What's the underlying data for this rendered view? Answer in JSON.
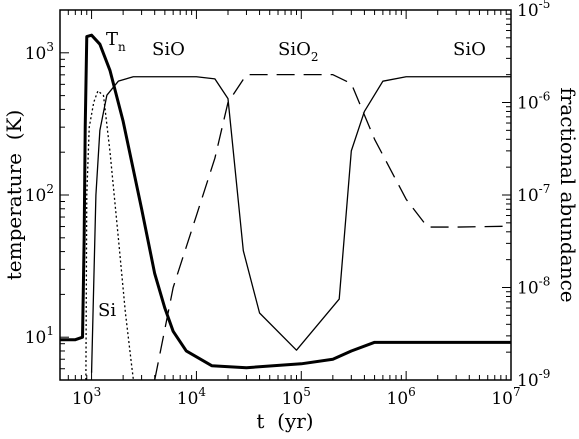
{
  "chart_data": {
    "type": "line",
    "xlabel": "t  (yr)",
    "ylabel_left": "temperature  (K)",
    "ylabel_right": "fractional abundance",
    "x_scale": "log",
    "xlim": [
      500,
      10000000
    ],
    "ylim_left": [
      5,
      2000
    ],
    "ylim_right": [
      1e-09,
      1e-05
    ],
    "x_ticks": [
      {
        "value": 1000,
        "base": "10",
        "exp": "3"
      },
      {
        "value": 10000,
        "base": "10",
        "exp": "4"
      },
      {
        "value": 100000,
        "base": "10",
        "exp": "5"
      },
      {
        "value": 1000000,
        "base": "10",
        "exp": "6"
      },
      {
        "value": 10000000,
        "base": "10",
        "exp": "7"
      }
    ],
    "y_left_ticks": [
      {
        "value": 10,
        "base": "10",
        "exp": "1"
      },
      {
        "value": 100,
        "base": "10",
        "exp": "2"
      },
      {
        "value": 1000,
        "base": "10",
        "exp": "3"
      }
    ],
    "y_right_ticks": [
      {
        "value": 1e-09,
        "base": "10",
        "exp": "-9"
      },
      {
        "value": 1e-08,
        "base": "10",
        "exp": "-8"
      },
      {
        "value": 1e-07,
        "base": "10",
        "exp": "-7"
      },
      {
        "value": 1e-06,
        "base": "10",
        "exp": "-6"
      },
      {
        "value": 1e-05,
        "base": "10",
        "exp": "-5"
      }
    ],
    "series": [
      {
        "name": "T",
        "name_sub": "n",
        "axis": "left",
        "style": "thick",
        "points": [
          [
            500,
            9.6
          ],
          [
            700,
            9.6
          ],
          [
            820,
            10
          ],
          [
            850,
            50
          ],
          [
            870,
            300
          ],
          [
            900,
            1300
          ],
          [
            1000,
            1330
          ],
          [
            1200,
            1150
          ],
          [
            1500,
            750
          ],
          [
            2000,
            330
          ],
          [
            3000,
            80
          ],
          [
            4000,
            28
          ],
          [
            5000,
            16
          ],
          [
            6000,
            11
          ],
          [
            8000,
            8
          ],
          [
            14000,
            6.3
          ],
          [
            30000,
            6.1
          ],
          [
            100000,
            6.5
          ],
          [
            200000,
            7
          ],
          [
            300000,
            8
          ],
          [
            500000,
            9.2
          ],
          [
            10000000,
            9.2
          ]
        ]
      },
      {
        "name": "Si",
        "axis": "left",
        "style": "dotted",
        "points": [
          [
            880,
            3
          ],
          [
            900,
            100
          ],
          [
            950,
            300
          ],
          [
            1050,
            450
          ],
          [
            1150,
            540
          ],
          [
            1300,
            500
          ],
          [
            1500,
            200
          ],
          [
            1800,
            50
          ],
          [
            2100,
            15
          ],
          [
            2400,
            6.5
          ],
          [
            2600,
            4
          ]
        ]
      },
      {
        "name": "SiO",
        "axis": "right",
        "style": "solid",
        "points": [
          [
            1000,
            1.2e-09
          ],
          [
            1100,
            1e-07
          ],
          [
            1200,
            5e-07
          ],
          [
            1400,
            1.2e-06
          ],
          [
            1800,
            1.7e-06
          ],
          [
            2500,
            1.9e-06
          ],
          [
            10000,
            1.9e-06
          ],
          [
            15000,
            1.8e-06
          ],
          [
            20000,
            1.1e-06
          ],
          [
            28000,
            2.5e-08
          ],
          [
            40000,
            5.3e-09
          ],
          [
            90000,
            2.1e-09
          ],
          [
            230000,
            7.5e-09
          ],
          [
            300000,
            3e-07
          ],
          [
            400000,
            8e-07
          ],
          [
            600000,
            1.7e-06
          ],
          [
            1000000,
            1.9e-06
          ],
          [
            10000000,
            1.9e-06
          ]
        ]
      },
      {
        "name": "SiO",
        "name_sub": "2",
        "axis": "right",
        "style": "dashed",
        "points": [
          [
            4000,
            1e-09
          ],
          [
            6000,
            1e-08
          ],
          [
            10000,
            6e-08
          ],
          [
            15000,
            2.5e-07
          ],
          [
            20000,
            1e-06
          ],
          [
            30000,
            2e-06
          ],
          [
            100000,
            2e-06
          ],
          [
            200000,
            2e-06
          ],
          [
            300000,
            1.6e-06
          ],
          [
            500000,
            4e-07
          ],
          [
            1000000,
            9e-08
          ],
          [
            1600000,
            4.5e-08
          ],
          [
            3000000,
            4.5e-08
          ],
          [
            10000000,
            4.6e-08
          ]
        ]
      }
    ],
    "annotations": [
      {
        "id": "tn",
        "text": "T",
        "sub": "n"
      },
      {
        "id": "sio-left",
        "text": "SiO"
      },
      {
        "id": "sio2",
        "text": "SiO",
        "sub": "2"
      },
      {
        "id": "sio-right",
        "text": "SiO"
      },
      {
        "id": "si",
        "text": "Si"
      }
    ]
  }
}
